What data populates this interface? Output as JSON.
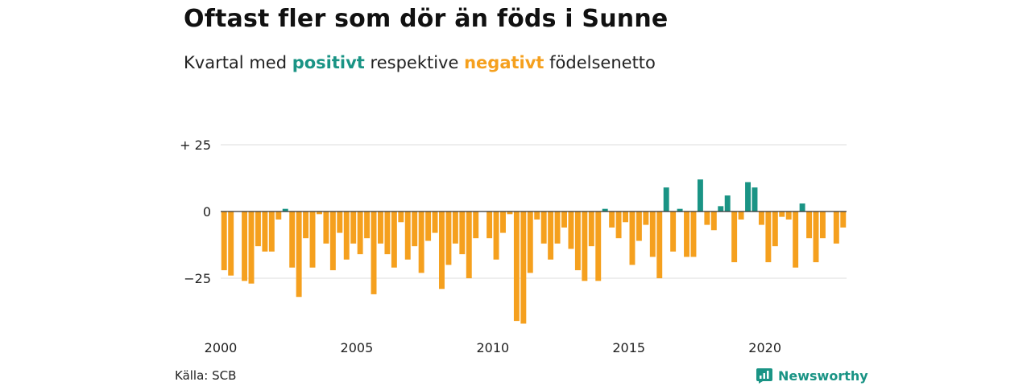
{
  "title": "Oftast fler som dör än föds i Sunne",
  "subtitle": {
    "prefix": "Kvartal med",
    "positive_word": "positivt",
    "middle": "respektive",
    "negative_word": "negativt",
    "suffix": "födelsenetto"
  },
  "source": "Källa: SCB",
  "brand": "Newsworthy",
  "colors": {
    "positive": "#1a9485",
    "negative": "#f5a01e",
    "grid": "#dddddd",
    "zero": "#333333"
  },
  "chart_data": {
    "type": "bar",
    "x_start": 2000,
    "quarters_per_year": 4,
    "ylim": [
      -42,
      25
    ],
    "yticks": [
      {
        "value": 25,
        "label": "+ 25"
      },
      {
        "value": 0,
        "label": "0"
      },
      {
        "value": -25,
        "label": "−25"
      }
    ],
    "xticks": [
      {
        "value": 2000,
        "label": "2000"
      },
      {
        "value": 2005,
        "label": "2005"
      },
      {
        "value": 2010,
        "label": "2010"
      },
      {
        "value": 2015,
        "label": "2015"
      },
      {
        "value": 2020,
        "label": "2020"
      }
    ],
    "values": [
      -22,
      -24,
      0,
      -26,
      -27,
      -13,
      -15,
      -15,
      -3,
      1,
      -21,
      -32,
      -10,
      -21,
      -1,
      -12,
      -22,
      -8,
      -18,
      -12,
      -16,
      -10,
      -31,
      -12,
      -16,
      -21,
      -4,
      -18,
      -13,
      -23,
      -11,
      -8,
      -29,
      -20,
      -12,
      -16,
      -25,
      -10,
      0,
      -10,
      -18,
      -8,
      -1,
      -41,
      -42,
      -23,
      -3,
      -12,
      -18,
      -12,
      -6,
      -14,
      -22,
      -26,
      -13,
      -26,
      1,
      -6,
      -10,
      -4,
      -20,
      -11,
      -5,
      -17,
      -25,
      9,
      -15,
      1,
      -17,
      -17,
      12,
      -5,
      -7,
      2,
      6,
      -19,
      -3,
      11,
      9,
      -5,
      -19,
      -13,
      -2,
      -3,
      -21,
      3,
      -10,
      -19,
      -10,
      0,
      -12,
      -6
    ]
  }
}
